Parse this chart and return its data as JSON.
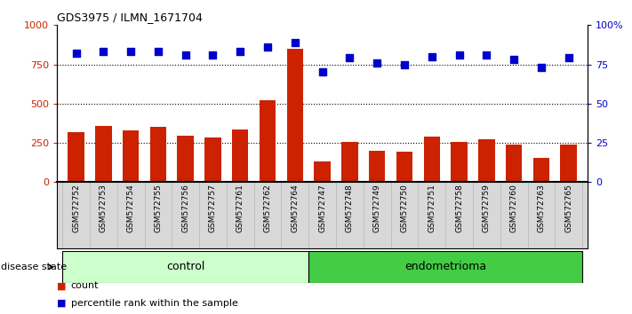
{
  "title": "GDS3975 / ILMN_1671704",
  "samples": [
    "GSM572752",
    "GSM572753",
    "GSM572754",
    "GSM572755",
    "GSM572756",
    "GSM572757",
    "GSM572761",
    "GSM572762",
    "GSM572764",
    "GSM572747",
    "GSM572748",
    "GSM572749",
    "GSM572750",
    "GSM572751",
    "GSM572758",
    "GSM572759",
    "GSM572760",
    "GSM572763",
    "GSM572765"
  ],
  "counts": [
    320,
    355,
    330,
    350,
    295,
    285,
    335,
    520,
    850,
    130,
    255,
    200,
    195,
    290,
    255,
    275,
    240,
    155,
    240
  ],
  "percentiles": [
    82,
    83,
    83,
    83,
    81,
    81,
    83,
    86,
    89,
    70,
    79,
    76,
    75,
    80,
    81,
    81,
    78,
    73,
    79
  ],
  "n_control": 9,
  "n_endo": 10,
  "bar_color": "#cc2200",
  "dot_color": "#0000cc",
  "ylim_left": [
    0,
    1000
  ],
  "ylim_right": [
    0,
    100
  ],
  "yticks_left": [
    0,
    250,
    500,
    750,
    1000
  ],
  "yticks_right": [
    0,
    25,
    50,
    75,
    100
  ],
  "ytick_labels_right": [
    "0",
    "25",
    "50",
    "75",
    "100%"
  ],
  "grid_values": [
    250,
    500,
    750
  ],
  "bg_color": "#d8d8d8",
  "control_color": "#ccffcc",
  "endometrioma_color": "#44cc44",
  "legend_count_label": "count",
  "legend_pct_label": "percentile rank within the sample",
  "disease_state_label": "disease state"
}
